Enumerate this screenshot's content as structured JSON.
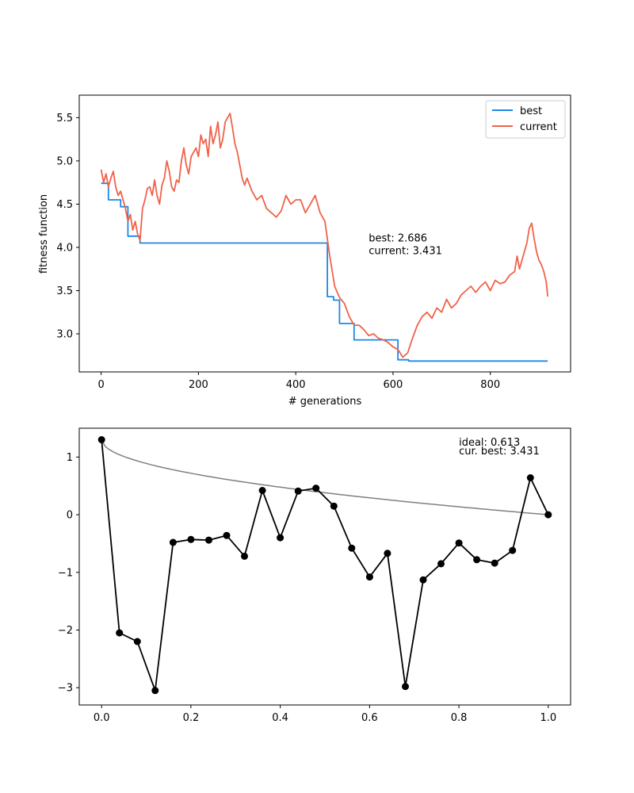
{
  "chart_data": [
    {
      "type": "line",
      "xlabel": "# generations",
      "ylabel": "fitness function",
      "xlim": [
        -45,
        965
      ],
      "ylim": [
        2.56,
        5.76
      ],
      "xticks": [
        0,
        200,
        400,
        600,
        800
      ],
      "xtick_labels": [
        "0",
        "200",
        "400",
        "600",
        "800"
      ],
      "yticks": [
        3.0,
        3.5,
        4.0,
        4.5,
        5.0,
        5.5
      ],
      "ytick_labels": [
        "3.0",
        "3.5",
        "4.0",
        "4.5",
        "5.0",
        "5.5"
      ],
      "legend": {
        "position": "top-right",
        "entries": [
          "best",
          "current"
        ]
      },
      "annotation": {
        "lines": [
          "best: 2.686",
          "current: 3.431"
        ],
        "x": 550,
        "y": 4.07
      },
      "grid": false,
      "series": [
        {
          "name": "best",
          "color": "#1e88e5",
          "step": true,
          "x": [
            0,
            15,
            40,
            55,
            80,
            465,
            478,
            490,
            520,
            550,
            610,
            632,
            918
          ],
          "y": [
            4.74,
            4.55,
            4.47,
            4.13,
            4.05,
            3.43,
            3.39,
            3.12,
            2.93,
            2.93,
            2.7,
            2.686,
            2.686
          ]
        },
        {
          "name": "current",
          "color": "#f0624a",
          "step": false,
          "x": [
            0,
            5,
            10,
            15,
            20,
            25,
            30,
            35,
            40,
            45,
            50,
            55,
            60,
            65,
            70,
            75,
            80,
            85,
            90,
            95,
            100,
            105,
            110,
            115,
            120,
            125,
            130,
            135,
            140,
            145,
            150,
            155,
            160,
            165,
            170,
            175,
            180,
            185,
            190,
            195,
            200,
            205,
            210,
            215,
            220,
            225,
            230,
            235,
            240,
            245,
            250,
            255,
            260,
            265,
            270,
            275,
            280,
            285,
            290,
            295,
            300,
            310,
            320,
            330,
            340,
            350,
            360,
            370,
            380,
            390,
            400,
            410,
            420,
            430,
            440,
            450,
            460,
            470,
            480,
            490,
            500,
            510,
            520,
            530,
            540,
            550,
            560,
            570,
            580,
            590,
            600,
            610,
            620,
            630,
            640,
            650,
            660,
            670,
            680,
            690,
            700,
            710,
            720,
            730,
            740,
            750,
            760,
            770,
            780,
            790,
            800,
            810,
            820,
            830,
            840,
            850,
            855,
            860,
            865,
            870,
            875,
            880,
            885,
            890,
            895,
            900,
            905,
            910,
            915,
            918
          ],
          "y": [
            4.9,
            4.75,
            4.85,
            4.7,
            4.8,
            4.88,
            4.7,
            4.6,
            4.65,
            4.55,
            4.45,
            4.3,
            4.38,
            4.2,
            4.3,
            4.15,
            4.08,
            4.45,
            4.55,
            4.68,
            4.7,
            4.6,
            4.78,
            4.6,
            4.5,
            4.72,
            4.8,
            5.0,
            4.88,
            4.7,
            4.65,
            4.78,
            4.75,
            5.0,
            5.15,
            4.95,
            4.85,
            5.05,
            5.1,
            5.15,
            5.05,
            5.3,
            5.2,
            5.25,
            5.05,
            5.4,
            5.2,
            5.3,
            5.45,
            5.15,
            5.25,
            5.45,
            5.5,
            5.55,
            5.38,
            5.2,
            5.1,
            4.95,
            4.8,
            4.72,
            4.8,
            4.65,
            4.55,
            4.6,
            4.45,
            4.4,
            4.35,
            4.42,
            4.6,
            4.5,
            4.55,
            4.55,
            4.4,
            4.5,
            4.6,
            4.4,
            4.3,
            3.9,
            3.55,
            3.42,
            3.35,
            3.2,
            3.1,
            3.1,
            3.05,
            2.98,
            3.0,
            2.95,
            2.93,
            2.9,
            2.85,
            2.82,
            2.73,
            2.78,
            2.95,
            3.1,
            3.2,
            3.25,
            3.18,
            3.3,
            3.25,
            3.4,
            3.3,
            3.35,
            3.45,
            3.5,
            3.55,
            3.48,
            3.55,
            3.6,
            3.5,
            3.62,
            3.58,
            3.6,
            3.68,
            3.72,
            3.9,
            3.75,
            3.85,
            3.95,
            4.05,
            4.22,
            4.28,
            4.1,
            3.95,
            3.85,
            3.8,
            3.72,
            3.6,
            3.431
          ]
        }
      ]
    },
    {
      "type": "line",
      "xlabel": "",
      "ylabel": "",
      "xlim": [
        -0.05,
        1.05
      ],
      "ylim": [
        -3.3,
        1.5
      ],
      "xticks": [
        0.0,
        0.2,
        0.4,
        0.6,
        0.8,
        1.0
      ],
      "xtick_labels": [
        "0.0",
        "0.2",
        "0.4",
        "0.6",
        "0.8",
        "1.0"
      ],
      "yticks": [
        -3,
        -2,
        -1,
        0,
        1
      ],
      "ytick_labels": [
        "−3",
        "−2",
        "−1",
        "0",
        "1"
      ],
      "annotation": {
        "lines": [
          "ideal: 0.613",
          "cur. best: 3.431"
        ],
        "x": 0.8,
        "y": 1.2
      },
      "grid": false,
      "series": [
        {
          "name": "ideal",
          "color": "#808080",
          "markers": false,
          "curve": "sqrt-decay",
          "start": 1.3,
          "end": 0.0
        },
        {
          "name": "cur. best",
          "color": "#000000",
          "markers": true,
          "x": [
            0.0,
            0.04,
            0.08,
            0.12,
            0.16,
            0.2,
            0.24,
            0.28,
            0.32,
            0.36,
            0.4,
            0.44,
            0.48,
            0.52,
            0.56,
            0.6,
            0.64,
            0.68,
            0.72,
            0.76,
            0.8,
            0.84,
            0.88,
            0.92,
            0.96,
            1.0
          ],
          "y": [
            1.3,
            -2.05,
            -2.2,
            -3.05,
            -0.48,
            -0.43,
            -0.44,
            -0.36,
            -0.72,
            0.42,
            -0.4,
            0.41,
            0.46,
            0.15,
            -0.58,
            -1.08,
            -0.67,
            -2.98,
            -1.13,
            -0.85,
            -0.49,
            -0.78,
            -0.84,
            -0.62,
            0.64,
            0.0
          ]
        }
      ]
    }
  ]
}
